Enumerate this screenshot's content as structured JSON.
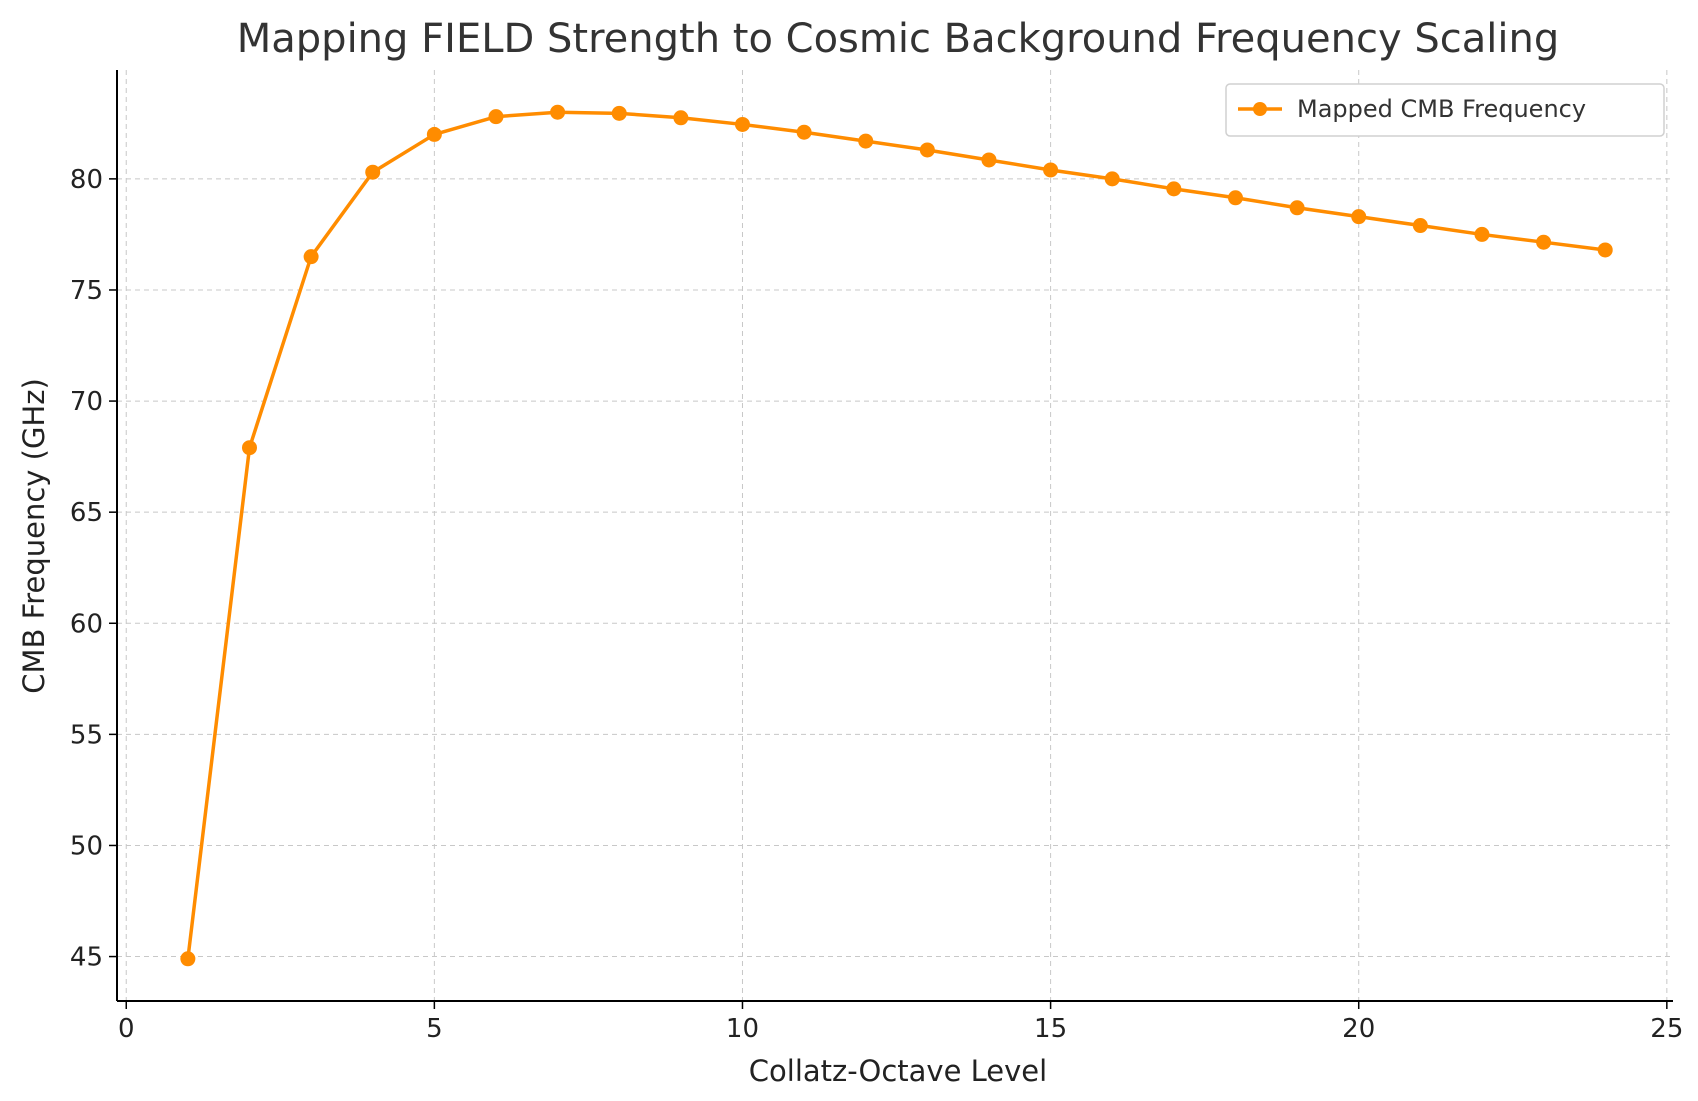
{
  "chart_data": {
    "type": "line",
    "title": "Mapping FIELD Strength to Cosmic Background Frequency Scaling",
    "xlabel": "Collatz-Octave Level",
    "ylabel": "CMB Frequency (GHz)",
    "xlim": [
      -0.15,
      25.1
    ],
    "ylim": [
      43.0,
      84.9
    ],
    "xticks": [
      0,
      5,
      10,
      15,
      20,
      25
    ],
    "yticks": [
      45,
      50,
      55,
      60,
      65,
      70,
      75,
      80
    ],
    "grid": true,
    "legend_position": "top-right",
    "series": [
      {
        "name": "Mapped CMB Frequency",
        "color": "#ff8c00",
        "marker": "circle",
        "x": [
          1,
          2,
          3,
          4,
          5,
          6,
          7,
          8,
          9,
          10,
          11,
          12,
          13,
          14,
          15,
          16,
          17,
          18,
          19,
          20,
          21,
          22,
          23,
          24
        ],
        "y": [
          44.9,
          67.9,
          76.5,
          80.3,
          82.0,
          82.8,
          83.0,
          82.95,
          82.75,
          82.45,
          82.1,
          81.7,
          81.3,
          80.85,
          80.4,
          80.0,
          79.55,
          79.15,
          78.7,
          78.3,
          77.9,
          77.5,
          77.15,
          76.8
        ]
      }
    ]
  }
}
